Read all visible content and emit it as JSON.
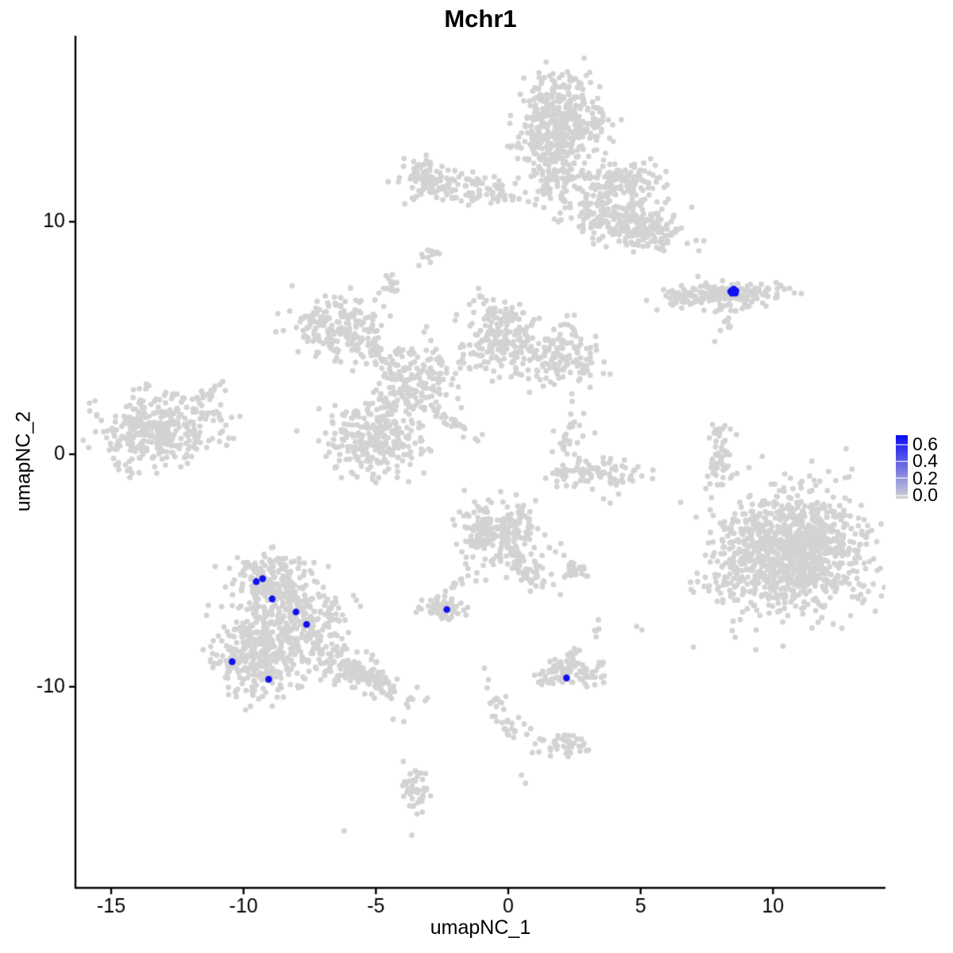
{
  "chart_data": {
    "type": "scatter",
    "title": "Mchr1",
    "xlabel": "umapNC_1",
    "ylabel": "umapNC_2",
    "xlim": [
      -16.35,
      14.25
    ],
    "ylim": [
      -18.65,
      18.0
    ],
    "xticks": [
      -15,
      -10,
      -5,
      0,
      5,
      10
    ],
    "yticks": [
      -10,
      0,
      10
    ],
    "grid": false,
    "legend_position": "right",
    "point_color": "#d3d3d3",
    "highlight_color": "#1212ef",
    "axis_color": "#000000",
    "background": "#ffffff",
    "seed": 42,
    "point_radius": 3.4,
    "highlight_radius": 4.3,
    "legend": {
      "labels": [
        "0.6",
        "0.4",
        "0.2",
        "0.0"
      ],
      "low_color": "#d3d3d3",
      "high_color": "#0a0af5"
    },
    "clusters": [
      {
        "x": 1.9,
        "y": 14.3,
        "sx": 0.85,
        "sy": 0.95,
        "n": 420
      },
      {
        "x": 1.75,
        "y": 11.9,
        "sx": 0.55,
        "sy": 0.7,
        "n": 100
      },
      {
        "x": 4.1,
        "y": 11.7,
        "sx": 0.85,
        "sy": 0.5,
        "n": 140
      },
      {
        "x": 5.35,
        "y": 9.7,
        "sx": 0.6,
        "sy": 0.6,
        "n": 130
      },
      {
        "x": 3.4,
        "y": 10.6,
        "sx": 0.7,
        "sy": 0.55,
        "n": 70
      },
      {
        "x": 4.0,
        "y": 9.9,
        "sx": 0.55,
        "sy": 0.5,
        "n": 60
      },
      {
        "x": -0.5,
        "y": 11.25,
        "sx": 0.7,
        "sy": 0.3,
        "n": 45
      },
      {
        "x": -3.2,
        "y": 11.85,
        "sx": 0.45,
        "sy": 0.45,
        "n": 75
      },
      {
        "x": -2.1,
        "y": 11.6,
        "sx": 0.8,
        "sy": 0.35,
        "n": 60
      },
      {
        "x": -2.95,
        "y": 8.55,
        "sx": 0.22,
        "sy": 0.28,
        "n": 14
      },
      {
        "x": -4.55,
        "y": 7.1,
        "sx": 0.28,
        "sy": 0.3,
        "n": 16
      },
      {
        "x": 8.3,
        "y": 6.85,
        "sx": 1.0,
        "sy": 0.28,
        "n": 170
      },
      {
        "x": 6.6,
        "y": 6.6,
        "sx": 0.5,
        "sy": 0.18,
        "n": 22
      },
      {
        "x": -6.5,
        "y": 5.5,
        "sx": 0.8,
        "sy": 0.65,
        "n": 190
      },
      {
        "x": -3.7,
        "y": 3.4,
        "sx": 0.85,
        "sy": 0.75,
        "n": 150
      },
      {
        "x": -0.1,
        "y": 4.9,
        "sx": 0.75,
        "sy": 0.75,
        "n": 180
      },
      {
        "x": 2.0,
        "y": 4.25,
        "sx": 0.65,
        "sy": 0.6,
        "n": 130
      },
      {
        "x": -5.1,
        "y": 0.6,
        "sx": 0.95,
        "sy": 0.8,
        "n": 260
      },
      {
        "x": 2.25,
        "y": 0.6,
        "sx": 0.3,
        "sy": 0.55,
        "n": 30
      },
      {
        "x": 3.4,
        "y": -0.8,
        "sx": 1.05,
        "sy": 0.35,
        "n": 85
      },
      {
        "x": -13.4,
        "y": 1.0,
        "sx": 1.05,
        "sy": 0.75,
        "n": 320
      },
      {
        "x": -10.9,
        "y": 1.3,
        "sx": 0.5,
        "sy": 0.35,
        "n": 18
      },
      {
        "x": 8.0,
        "y": 0.1,
        "sx": 0.26,
        "sy": 0.8,
        "n": 50
      },
      {
        "x": 10.9,
        "y": -4.1,
        "sx": 1.3,
        "sy": 1.3,
        "n": 950
      },
      {
        "x": 8.7,
        "y": -4.9,
        "sx": 0.7,
        "sy": 1.15,
        "n": 130
      },
      {
        "x": 7.9,
        "y": -0.75,
        "sx": 0.3,
        "sy": 0.18,
        "n": 6
      },
      {
        "x": -9.0,
        "y": -5.3,
        "sx": 0.75,
        "sy": 0.55,
        "n": 140
      },
      {
        "x": -8.2,
        "y": -6.9,
        "sx": 1.0,
        "sy": 0.85,
        "n": 300
      },
      {
        "x": -9.4,
        "y": -8.8,
        "sx": 0.85,
        "sy": 0.8,
        "n": 290
      },
      {
        "x": -5.7,
        "y": -9.4,
        "sx": 1.15,
        "sy": 0.38,
        "n": 180,
        "rot": -28
      },
      {
        "x": -0.35,
        "y": -3.3,
        "sx": 0.8,
        "sy": 0.7,
        "n": 250
      },
      {
        "x": 0.75,
        "y": -5.1,
        "sx": 0.55,
        "sy": 0.28,
        "n": 55,
        "rot": -40
      },
      {
        "x": -2.5,
        "y": -6.65,
        "sx": 0.4,
        "sy": 0.28,
        "n": 65
      },
      {
        "x": 2.6,
        "y": -5.0,
        "sx": 0.33,
        "sy": 0.2,
        "n": 26
      },
      {
        "x": 2.3,
        "y": -9.4,
        "sx": 0.55,
        "sy": 0.33,
        "n": 95
      },
      {
        "x": 3.3,
        "y": -7.5,
        "sx": 0.12,
        "sy": 0.28,
        "n": 5
      },
      {
        "x": 2.1,
        "y": -12.6,
        "sx": 0.55,
        "sy": 0.28,
        "n": 45
      },
      {
        "x": -3.5,
        "y": -14.5,
        "sx": 0.28,
        "sy": 0.55,
        "n": 48
      }
    ],
    "chains": [
      {
        "x1": 8.55,
        "y1": 6.2,
        "x2": 8.15,
        "y2": 5.35,
        "n": 12,
        "j": 0.15
      },
      {
        "x1": -5.6,
        "y1": 4.6,
        "x2": -4.4,
        "y2": 4.0,
        "n": 22,
        "j": 0.3
      },
      {
        "x1": -0.95,
        "y1": 6.6,
        "x2": -0.35,
        "y2": 5.7,
        "n": 20,
        "j": 0.25
      },
      {
        "x1": -4.0,
        "y1": 2.5,
        "x2": -4.7,
        "y2": 1.5,
        "n": 22,
        "j": 0.3
      },
      {
        "x1": -3.1,
        "y1": 2.2,
        "x2": -1.1,
        "y2": 0.6,
        "n": 26,
        "j": 0.14
      },
      {
        "x1": -1.8,
        "y1": 3.7,
        "x2": -3.3,
        "y2": 1.9,
        "n": 20,
        "j": 0.35
      },
      {
        "x1": -11.6,
        "y1": 2.2,
        "x2": -10.8,
        "y2": 3.0,
        "n": 22,
        "j": 0.25
      },
      {
        "x1": -1.3,
        "y1": -4.9,
        "x2": -2.3,
        "y2": -6.2,
        "n": 14,
        "j": 0.15
      },
      {
        "x1": 2.45,
        "y1": -8.4,
        "x2": 2.3,
        "y2": -9.0,
        "n": 10,
        "j": 0.12
      },
      {
        "x1": -0.6,
        "y1": -10.4,
        "x2": 0.2,
        "y2": -12.2,
        "n": 30,
        "j": 0.2
      }
    ],
    "singles": [
      [
        -4.35,
        -11.4
      ],
      [
        -3.95,
        -11.5
      ],
      [
        0.6,
        -11.6
      ],
      [
        0.85,
        -11.8
      ],
      [
        0.7,
        -12.05
      ],
      [
        0.5,
        -13.8
      ],
      [
        0.65,
        -14.15
      ],
      [
        -6.2,
        -16.2
      ],
      [
        7.8,
        4.85
      ],
      [
        3.85,
        -2.1
      ],
      [
        2.4,
        2.6
      ],
      [
        2.85,
        1.75
      ],
      [
        4.85,
        -7.4
      ],
      [
        5.05,
        -7.55
      ],
      [
        7.1,
        9.2
      ],
      [
        7.2,
        8.75
      ],
      [
        -0.9,
        -9.2
      ],
      [
        -0.75,
        -9.7
      ],
      [
        -0.8,
        -10.05
      ]
    ],
    "highlight_points": [
      [
        8.4,
        7.0
      ],
      [
        8.47,
        7.06
      ],
      [
        8.53,
        6.98
      ],
      [
        8.6,
        7.03
      ],
      [
        8.45,
        6.93
      ],
      [
        8.52,
        7.1
      ],
      [
        8.58,
        6.93
      ],
      [
        8.49,
        7.01
      ],
      [
        -9.52,
        -5.48
      ],
      [
        -9.28,
        -5.35
      ],
      [
        -8.92,
        -6.22
      ],
      [
        -8.02,
        -6.78
      ],
      [
        -7.62,
        -7.32
      ],
      [
        -10.43,
        -8.92
      ],
      [
        -9.05,
        -9.68
      ],
      [
        -2.32,
        -6.68
      ],
      [
        2.2,
        -9.62
      ]
    ]
  }
}
